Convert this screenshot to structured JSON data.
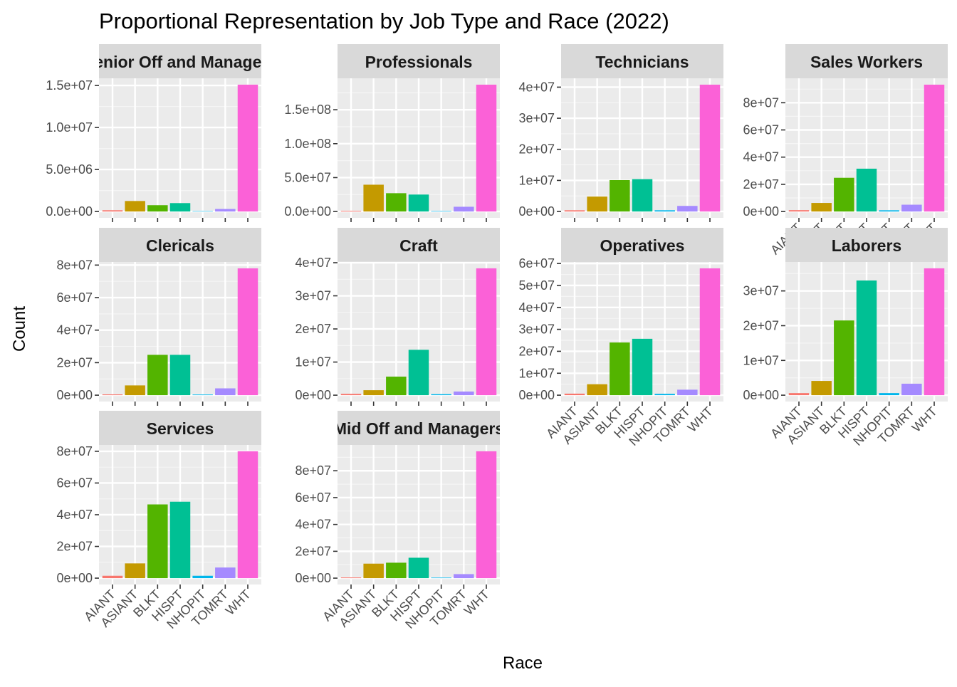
{
  "chart_data": {
    "type": "bar",
    "title": "Proportional Representation by Job Type and Race (2022)",
    "xlabel": "Race",
    "ylabel": "Count",
    "categories": [
      "AIANT",
      "ASIANT",
      "BLKT",
      "HISPT",
      "NHOPIT",
      "TOMRT",
      "WHT"
    ],
    "colors": [
      "#F8766D",
      "#C49A00",
      "#53B400",
      "#00C094",
      "#00B6EB",
      "#A58AFF",
      "#FB61D7"
    ],
    "grid": true,
    "legend": "none",
    "facets": [
      {
        "label": "Senior Off and Managers",
        "values": [
          150000,
          1250000,
          750000,
          1000000,
          50000,
          300000,
          15100000
        ],
        "ylim": [
          -755000,
          15855000
        ],
        "yticks": [
          0,
          5000000,
          10000000,
          15000000
        ],
        "ytick_labels": [
          "0.0e+00",
          "5.0e+06",
          "1.0e+07",
          "1.5e+07"
        ],
        "show_x_labels": false
      },
      {
        "label": "Professionals",
        "values": [
          1000000,
          39500000,
          27000000,
          25000000,
          700000,
          7000000,
          187000000
        ],
        "ylim": [
          -9350000,
          196350000
        ],
        "yticks": [
          0,
          50000000,
          100000000,
          150000000
        ],
        "ytick_labels": [
          "0.0e+00",
          "5.0e+07",
          "1.0e+08",
          "1.5e+08"
        ],
        "show_x_labels": false
      },
      {
        "label": "Technicians",
        "values": [
          400000,
          4800000,
          10100000,
          10400000,
          400000,
          1800000,
          40800000
        ],
        "ylim": [
          -2040000,
          42840000
        ],
        "yticks": [
          0,
          10000000,
          20000000,
          30000000,
          40000000
        ],
        "ytick_labels": [
          "0e+00",
          "1e+07",
          "2e+07",
          "3e+07",
          "4e+07"
        ],
        "show_x_labels": false
      },
      {
        "label": "Sales Workers",
        "values": [
          1000000,
          6300000,
          24800000,
          31500000,
          900000,
          5000000,
          93300000
        ],
        "ylim": [
          -4665000,
          97965000
        ],
        "yticks": [
          0,
          20000000,
          40000000,
          60000000,
          80000000
        ],
        "ytick_labels": [
          "0e+00",
          "2e+07",
          "4e+07",
          "6e+07",
          "8e+07"
        ],
        "show_x_labels": true
      },
      {
        "label": "Clericals",
        "values": [
          500000,
          6000000,
          24800000,
          24800000,
          400000,
          4200000,
          78000000
        ],
        "ylim": [
          -3900000,
          81900000
        ],
        "yticks": [
          0,
          20000000,
          40000000,
          60000000,
          80000000
        ],
        "ytick_labels": [
          "0e+00",
          "2e+07",
          "4e+07",
          "6e+07",
          "8e+07"
        ],
        "show_x_labels": false
      },
      {
        "label": "Craft",
        "values": [
          400000,
          1500000,
          5600000,
          13700000,
          300000,
          1100000,
          38300000
        ],
        "ylim": [
          -1915000,
          40215000
        ],
        "yticks": [
          0,
          10000000,
          20000000,
          30000000,
          40000000
        ],
        "ytick_labels": [
          "0e+00",
          "1e+07",
          "2e+07",
          "3e+07",
          "4e+07"
        ],
        "show_x_labels": false
      },
      {
        "label": "Operatives",
        "values": [
          700000,
          5000000,
          24000000,
          25700000,
          600000,
          2500000,
          57800000
        ],
        "ylim": [
          -2890000,
          60690000
        ],
        "yticks": [
          0,
          10000000,
          20000000,
          30000000,
          40000000,
          50000000,
          60000000
        ],
        "ytick_labels": [
          "0e+00",
          "1e+07",
          "2e+07",
          "3e+07",
          "4e+07",
          "5e+07",
          "6e+07"
        ],
        "show_x_labels": true
      },
      {
        "label": "Laborers",
        "values": [
          600000,
          4100000,
          21500000,
          33000000,
          600000,
          3300000,
          36500000
        ],
        "ylim": [
          -1825000,
          38325000
        ],
        "yticks": [
          0,
          10000000,
          20000000,
          30000000
        ],
        "ytick_labels": [
          "0e+00",
          "1e+07",
          "2e+07",
          "3e+07"
        ],
        "show_x_labels": true
      },
      {
        "label": "Services",
        "values": [
          1500000,
          9300000,
          46500000,
          48200000,
          1500000,
          6700000,
          80000000
        ],
        "ylim": [
          -4000000,
          84000000
        ],
        "yticks": [
          0,
          20000000,
          40000000,
          60000000,
          80000000
        ],
        "ytick_labels": [
          "0e+00",
          "2e+07",
          "4e+07",
          "6e+07",
          "8e+07"
        ],
        "show_x_labels": true
      },
      {
        "label": "Mid Off and Managers",
        "values": [
          500000,
          10800000,
          11500000,
          15200000,
          400000,
          3000000,
          94500000
        ],
        "ylim": [
          -4725000,
          99225000
        ],
        "yticks": [
          0,
          20000000,
          40000000,
          60000000,
          80000000
        ],
        "ytick_labels": [
          "0e+00",
          "2e+07",
          "4e+07",
          "6e+07",
          "8e+07"
        ],
        "show_x_labels": true
      }
    ]
  }
}
